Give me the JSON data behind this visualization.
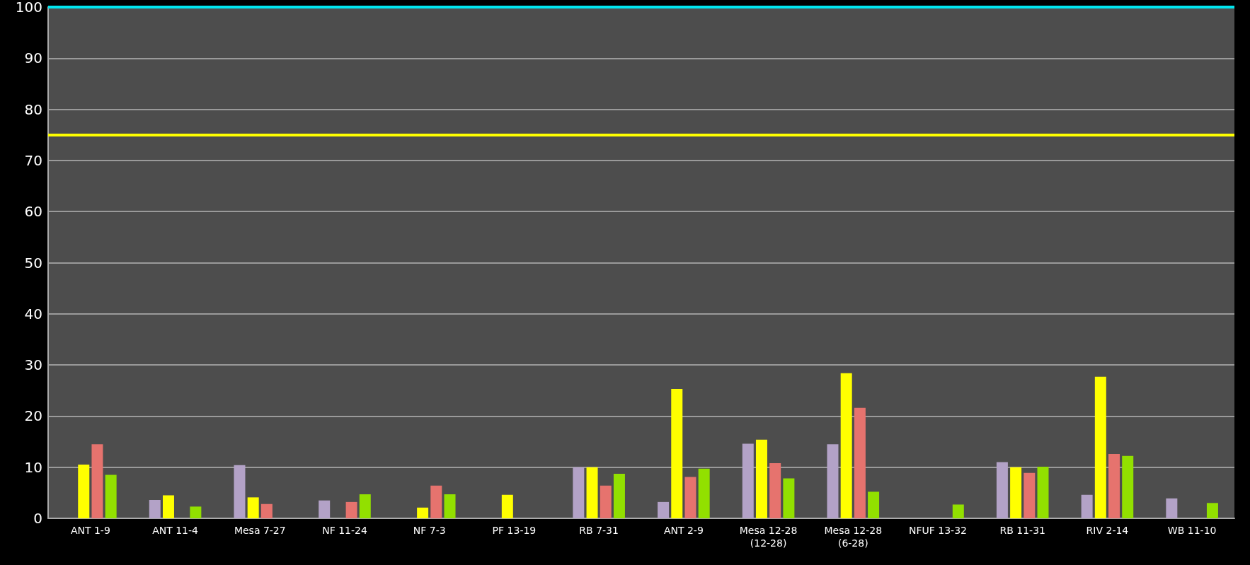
{
  "chart_data": {
    "type": "bar",
    "categories": [
      "ANT 1-9",
      "ANT 11-4",
      "Mesa 7-27",
      "NF 11-24",
      "NF 7-3",
      "PF 13-19",
      "RB 7-31",
      "ANT 2-9",
      "Mesa 12-28\n(12-28)",
      "Mesa 12-28\n(6-28)",
      "NFUF 13-32",
      "RB 11-31",
      "RIV 2-14",
      "WB 11-10"
    ],
    "series": [
      {
        "color": "#b3a2c7",
        "values": [
          null,
          3.6,
          10.4,
          3.5,
          null,
          null,
          10,
          3.2,
          14.6,
          14.5,
          null,
          11,
          4.6,
          3.9
        ]
      },
      {
        "color": "#ffff00",
        "values": [
          10.5,
          4.5,
          4.1,
          null,
          2.1,
          4.6,
          10,
          25.3,
          15.4,
          28.4,
          null,
          10,
          27.7,
          null
        ]
      },
      {
        "color": "#e6736e",
        "values": [
          14.5,
          null,
          2.8,
          3.2,
          6.4,
          null,
          6.4,
          8.1,
          10.8,
          21.6,
          null,
          8.9,
          12.6,
          null
        ]
      },
      {
        "color": "#92e000",
        "values": [
          8.5,
          2.3,
          null,
          4.7,
          4.7,
          null,
          8.7,
          9.7,
          7.8,
          5.2,
          2.7,
          10.1,
          12.2,
          3
        ]
      }
    ],
    "ylim": [
      0,
      100
    ],
    "yticks": [
      0,
      10,
      20,
      30,
      40,
      50,
      60,
      70,
      80,
      90,
      100
    ],
    "grid": "y",
    "ref_lines": [
      {
        "axis": "y",
        "value": 100,
        "color": "#00e5ee"
      },
      {
        "axis": "y",
        "value": 75,
        "color": "#ffff00"
      }
    ]
  }
}
